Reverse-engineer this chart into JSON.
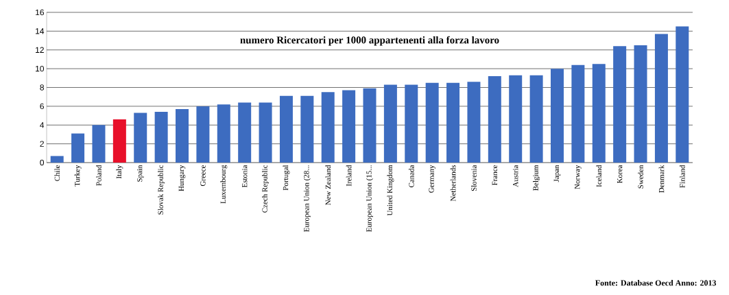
{
  "chart_data": {
    "type": "bar",
    "title": "numero Ricercatori per 1000 appartenenti alla forza lavoro",
    "categories": [
      "Chile",
      "Turkey",
      "Poland",
      "Italy",
      "Spain",
      "Slovak Republic",
      "Hungary",
      "Greece",
      "Luxembourg",
      "Estonia",
      "Czech Republic",
      "Portugal",
      "European Union (28...",
      "New Zealand",
      "Ireland",
      "European Union (15...",
      "United Kingdom",
      "Canada",
      "Germany",
      "Netherlands",
      "Slovenia",
      "France",
      "Austria",
      "Belgium",
      "Japan",
      "Norway",
      "Iceland",
      "Korea",
      "Sweden",
      "Denmark",
      "Finland"
    ],
    "values": [
      0.7,
      3.1,
      4.0,
      4.6,
      5.3,
      5.4,
      5.7,
      6.0,
      6.2,
      6.4,
      6.4,
      7.1,
      7.1,
      7.5,
      7.7,
      7.9,
      8.3,
      8.3,
      8.5,
      8.5,
      8.6,
      9.2,
      9.3,
      9.3,
      10.0,
      10.4,
      10.5,
      12.4,
      12.5,
      13.7,
      14.5
    ],
    "colors": [
      "#3d6cc0",
      "#3d6cc0",
      "#3d6cc0",
      "#e8102a",
      "#3d6cc0",
      "#3d6cc0",
      "#3d6cc0",
      "#3d6cc0",
      "#3d6cc0",
      "#3d6cc0",
      "#3d6cc0",
      "#3d6cc0",
      "#3d6cc0",
      "#3d6cc0",
      "#3d6cc0",
      "#3d6cc0",
      "#3d6cc0",
      "#3d6cc0",
      "#3d6cc0",
      "#3d6cc0",
      "#3d6cc0",
      "#3d6cc0",
      "#3d6cc0",
      "#3d6cc0",
      "#3d6cc0",
      "#3d6cc0",
      "#3d6cc0",
      "#3d6cc0",
      "#3d6cc0",
      "#3d6cc0",
      "#3d6cc0"
    ],
    "ylim": [
      0,
      16
    ],
    "yticks": [
      0,
      2,
      4,
      6,
      8,
      10,
      12,
      14,
      16
    ],
    "grid": "y",
    "annotations": [
      "Fonte: Database Oecd  Anno: 2013"
    ]
  }
}
